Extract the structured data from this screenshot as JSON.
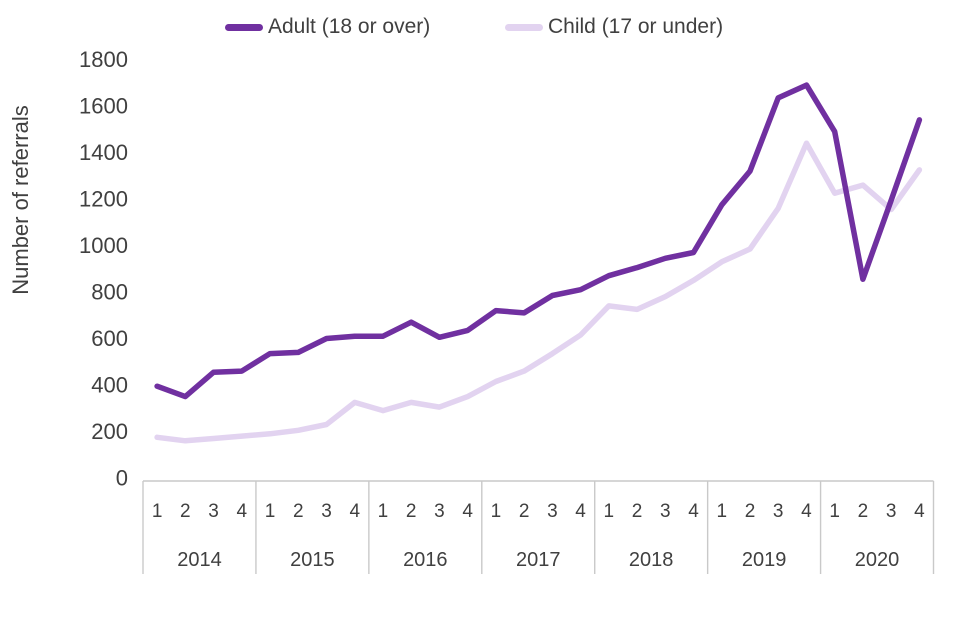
{
  "chart_data": {
    "type": "line",
    "title": "",
    "xlabel": "",
    "ylabel": "Number of referrals",
    "ylim": [
      0,
      1800
    ],
    "ytick_step": 200,
    "yticks": [
      0,
      200,
      400,
      600,
      800,
      1000,
      1200,
      1400,
      1600,
      1800
    ],
    "grid": false,
    "legend_position": "top",
    "years": [
      "2014",
      "2015",
      "2016",
      "2017",
      "2018",
      "2019",
      "2020"
    ],
    "quarter_labels": [
      "1",
      "2",
      "3",
      "4"
    ],
    "categories": [
      "2014 Q1",
      "2014 Q2",
      "2014 Q3",
      "2014 Q4",
      "2015 Q1",
      "2015 Q2",
      "2015 Q3",
      "2015 Q4",
      "2016 Q1",
      "2016 Q2",
      "2016 Q3",
      "2016 Q4",
      "2017 Q1",
      "2017 Q2",
      "2017 Q3",
      "2017 Q4",
      "2018 Q1",
      "2018 Q2",
      "2018 Q3",
      "2018 Q4",
      "2019 Q1",
      "2019 Q2",
      "2019 Q3",
      "2019 Q4",
      "2020 Q1",
      "2020 Q2",
      "2020 Q3",
      "2020 Q4"
    ],
    "series": [
      {
        "name": "Adult (18 or over)",
        "color": "#7030A0",
        "values": [
          395,
          350,
          455,
          460,
          535,
          540,
          600,
          610,
          610,
          670,
          605,
          635,
          720,
          710,
          785,
          810,
          870,
          905,
          945,
          970,
          1175,
          1320,
          1635,
          1690,
          1490,
          855,
          1195,
          1540
        ]
      },
      {
        "name": "Child (17 or under)",
        "color": "#E2D3F0",
        "values": [
          175,
          160,
          170,
          180,
          190,
          205,
          230,
          325,
          290,
          325,
          305,
          350,
          415,
          460,
          535,
          615,
          740,
          725,
          780,
          850,
          930,
          985,
          1160,
          1440,
          1225,
          1260,
          1155,
          1325
        ]
      }
    ],
    "axis_text_color": "#404040",
    "table_border_color": "#C9C9C9"
  }
}
